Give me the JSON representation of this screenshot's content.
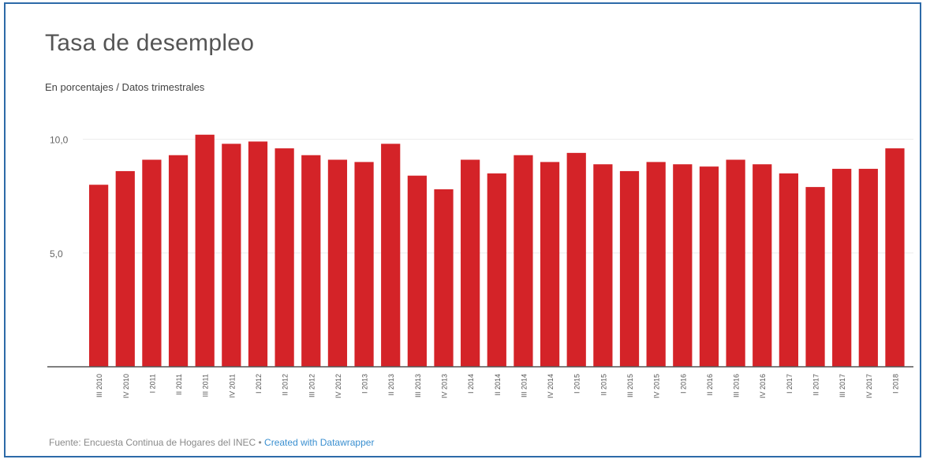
{
  "colors": {
    "bar": "#d42328",
    "frame": "#2d6aa8",
    "grid": "#ececec",
    "axis": "#555555",
    "credit_link": "#3a8fd0"
  },
  "chart_data": {
    "type": "bar",
    "title": "Tasa de desempleo",
    "subtitle": "En porcentajes / Datos trimestrales",
    "xlabel": "",
    "ylabel": "",
    "ylim": [
      0,
      10.4
    ],
    "yticks": [
      {
        "value": 5,
        "label": "5,0"
      },
      {
        "value": 10,
        "label": "10,0"
      }
    ],
    "grid": true,
    "categories": [
      "III 2010",
      "IV 2010",
      "I 2011",
      "II 2011",
      "III 2011",
      "IV 2011",
      "I 2012",
      "II 2012",
      "III 2012",
      "IV 2012",
      "I 2013",
      "II 2013",
      "III 2013",
      "IV 2013",
      "I 2014",
      "II 2014",
      "III 2014",
      "IV 2014",
      "I 2015",
      "II 2015",
      "III 2015",
      "IV 2015",
      "I 2016",
      "II 2016",
      "III 2016",
      "IV 2016",
      "I 2017",
      "II 2017",
      "III 2017",
      "IV 2017",
      "I 2018"
    ],
    "values": [
      8.0,
      8.6,
      9.1,
      9.3,
      10.2,
      9.8,
      9.9,
      9.6,
      9.3,
      9.1,
      9.0,
      9.8,
      8.4,
      7.8,
      9.1,
      8.5,
      9.3,
      9.0,
      9.4,
      8.9,
      8.6,
      9.0,
      8.9,
      8.8,
      9.1,
      8.9,
      8.5,
      7.9,
      8.7,
      8.7,
      9.6
    ]
  },
  "footer": {
    "source": "Fuente: Encuesta Continua de Hogares del INEC",
    "separator": "•",
    "credit": "Created with Datawrapper"
  }
}
